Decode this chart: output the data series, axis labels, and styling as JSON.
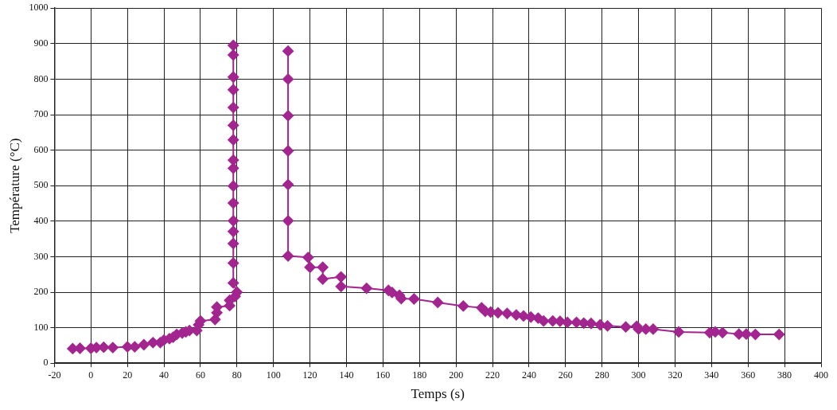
{
  "chart_data": {
    "type": "line",
    "xlabel": "Temps (s)",
    "ylabel": "Température (°C)",
    "x": [
      -10,
      -6,
      0,
      3,
      7,
      12,
      20,
      24,
      29,
      34,
      38,
      40,
      43,
      45,
      47,
      50,
      52,
      54,
      58,
      59,
      60,
      68,
      69,
      69,
      76,
      76,
      79,
      80,
      78,
      78,
      78,
      78,
      78,
      78,
      78,
      78,
      78,
      78,
      78,
      78,
      78,
      78,
      78,
      78,
      null,
      108,
      108,
      108,
      108,
      108,
      108,
      108,
      119,
      120,
      127,
      127,
      137,
      137,
      151,
      163,
      165,
      169,
      170,
      177,
      190,
      204,
      214,
      216,
      219,
      223,
      228,
      233,
      237,
      241,
      245,
      248,
      253,
      257,
      261,
      266,
      270,
      274,
      279,
      283,
      293,
      299,
      300,
      304,
      308,
      322,
      339,
      342,
      346,
      355,
      359,
      364,
      377
    ],
    "series": [
      {
        "color": "#a3258f",
        "values": [
          41,
          42,
          42,
          44,
          45,
          44,
          46,
          46,
          52,
          58,
          58,
          65,
          69,
          73,
          81,
          85,
          88,
          92,
          92,
          108,
          119,
          123,
          142,
          158,
          162,
          177,
          188,
          200,
          226,
          282,
          337,
          371,
          401,
          451,
          499,
          549,
          572,
          629,
          670,
          720,
          770,
          806,
          868,
          895,
          null,
          879,
          800,
          697,
          598,
          503,
          401,
          302,
          298,
          270,
          270,
          237,
          243,
          216,
          211,
          205,
          199,
          191,
          182,
          181,
          171,
          161,
          156,
          146,
          144,
          142,
          140,
          136,
          133,
          130,
          127,
          119,
          119,
          118,
          115,
          115,
          113,
          112,
          108,
          105,
          102,
          104,
          96,
          96,
          96,
          88,
          86,
          88,
          86,
          82,
          82,
          81,
          81
        ]
      }
    ],
    "xlim": [
      -20,
      400
    ],
    "ylim": [
      0,
      1000
    ],
    "xticks": [
      -20,
      0,
      20,
      40,
      60,
      80,
      100,
      120,
      140,
      160,
      180,
      200,
      220,
      240,
      260,
      280,
      300,
      320,
      340,
      360,
      380,
      400
    ],
    "yticks": [
      0,
      100,
      200,
      300,
      400,
      500,
      600,
      700,
      800,
      900,
      1000
    ],
    "grid": true,
    "legend": false,
    "marker": "diamond",
    "line_style": "solid"
  }
}
